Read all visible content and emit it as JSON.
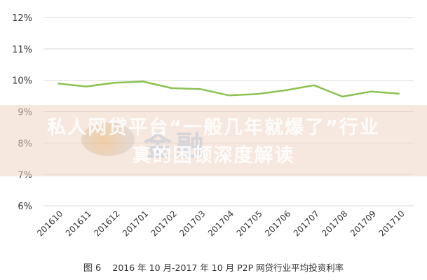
{
  "chart_data": {
    "type": "line",
    "categories": [
      "201610",
      "201611",
      "201612",
      "201701",
      "201702",
      "201703",
      "201704",
      "201705",
      "201706",
      "201707",
      "201708",
      "201709",
      "201710"
    ],
    "series": [
      {
        "values": [
          9.9,
          9.8,
          9.92,
          9.96,
          9.75,
          9.72,
          9.52,
          9.56,
          9.68,
          9.84,
          9.48,
          9.64,
          9.57
        ],
        "color": "#8cc152"
      }
    ],
    "ylim": [
      6,
      12
    ],
    "yticks": [
      "6%",
      "7%",
      "8%",
      "9%",
      "10%",
      "11%",
      "12%"
    ],
    "grid": true,
    "gridColor": "#d9d9d9",
    "title": "",
    "xlabel": "",
    "ylabel": ""
  },
  "caption": {
    "fig": "图 6",
    "period": "2016 年 10 月-2017 年 10 月 P2P 网贷行业平均投资利率"
  },
  "watermark": {
    "line1": "私人网贷平台“一般几年就爆了”行业",
    "line2": "真的困顿深度解读",
    "brand": "金融"
  }
}
